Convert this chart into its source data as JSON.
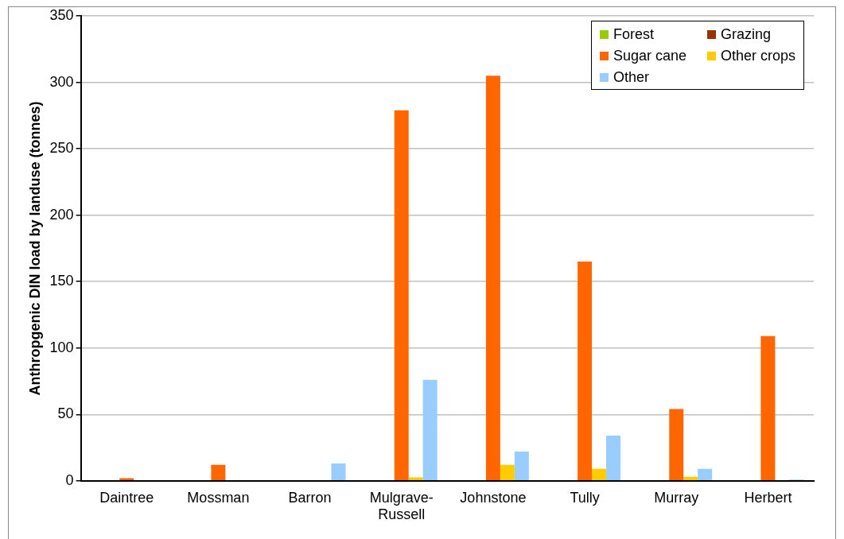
{
  "chart_data": {
    "type": "bar",
    "ylabel": "Anthropgenic DIN load by landuse (tonnes)",
    "categories": [
      "Daintree",
      "Mossman",
      "Barron",
      "Mulgrave-Russell",
      "Johnstone",
      "Tully",
      "Murray",
      "Herbert"
    ],
    "series": [
      {
        "name": "Forest",
        "color": "#99cc00",
        "values": [
          0,
          0,
          0,
          0,
          0,
          0,
          0,
          0
        ]
      },
      {
        "name": "Grazing",
        "color": "#993300",
        "values": [
          0,
          0,
          0,
          0,
          0,
          0,
          0,
          0
        ]
      },
      {
        "name": "Sugar cane",
        "color": "#ff6600",
        "values": [
          2,
          12,
          null,
          279,
          305,
          165,
          54,
          109
        ]
      },
      {
        "name": "Other crops",
        "color": "#ffcc00",
        "values": [
          0,
          0,
          0,
          2.5,
          12,
          9,
          3,
          0
        ]
      },
      {
        "name": "Other",
        "color": "#99ccff",
        "values": [
          0,
          0,
          13,
          76,
          22,
          34,
          9,
          1
        ]
      }
    ],
    "ylim": [
      0,
      350
    ],
    "yticks": [
      0,
      50,
      100,
      150,
      200,
      250,
      300,
      350
    ],
    "grid": "y",
    "legend": "top right"
  }
}
